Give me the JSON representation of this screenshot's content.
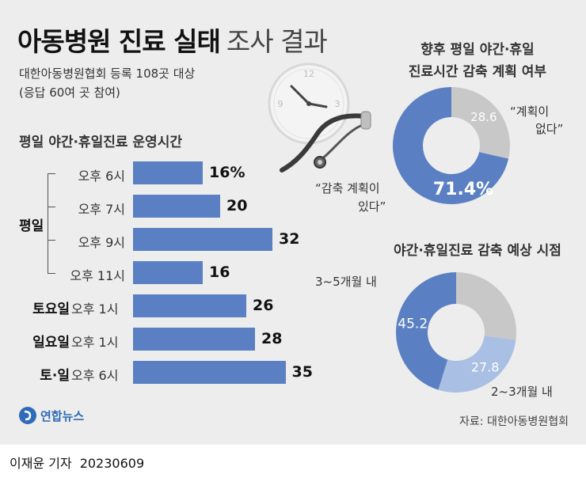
{
  "title_bold": "아동병원 진료 실태",
  "title_light": "조사 결과",
  "subtitle_line1": "대한아동병원협회 등록 108곳 대상",
  "subtitle_line2": "(응답 60여 곳 참여)",
  "source": "자료: 대한아동병원협회",
  "logo_text": "연합뉴스",
  "byline": {
    "reporter": "이재윤 기자",
    "date": "20230609"
  },
  "chart_data": [
    {
      "type": "bar",
      "title": "평일 야간·휴일진료 운영시간",
      "groups": [
        {
          "name": "평일",
          "items": [
            {
              "label": "오후 6시",
              "value": 16,
              "display": "16%"
            },
            {
              "label": "오후 7시",
              "value": 20,
              "display": "20"
            },
            {
              "label": "오후 9시",
              "value": 32,
              "display": "32"
            },
            {
              "label": "오후 11시",
              "value": 16,
              "display": "16"
            }
          ]
        },
        {
          "name": "토요일",
          "items": [
            {
              "label": "오후 1시",
              "value": 26,
              "display": "26"
            }
          ]
        },
        {
          "name": "일요일",
          "items": [
            {
              "label": "오후 1시",
              "value": 28,
              "display": "28"
            }
          ]
        },
        {
          "name": "토·일",
          "items": [
            {
              "label": "오후 6시",
              "value": 35,
              "display": "35"
            }
          ]
        }
      ],
      "unit": "%"
    },
    {
      "type": "pie",
      "title_line1": "향후 평일 야간·휴일",
      "title_line2": "진료시간 감축 계획 여부",
      "slices": [
        {
          "label_line1": "“계획이",
          "label_line2": "없다”",
          "value": 28.6,
          "display": "28.6",
          "color": "#c8c8c8"
        },
        {
          "label_line1": "“감축 계획이",
          "label_line2": "있다”",
          "value": 71.4,
          "display": "71.4%",
          "color": "#5a80c3"
        }
      ]
    },
    {
      "type": "pie",
      "title": "야간·휴일진료 감축 예상 시점",
      "slices": [
        {
          "label": "",
          "value": 27.0,
          "display": "",
          "color": "#c8c8c8"
        },
        {
          "label": "2~3개월 내",
          "value": 27.8,
          "display": "27.8",
          "color": "#a9bfe3"
        },
        {
          "label": "3~5개월 내",
          "value": 45.2,
          "display": "45.2",
          "color": "#5a80c3"
        }
      ]
    }
  ]
}
